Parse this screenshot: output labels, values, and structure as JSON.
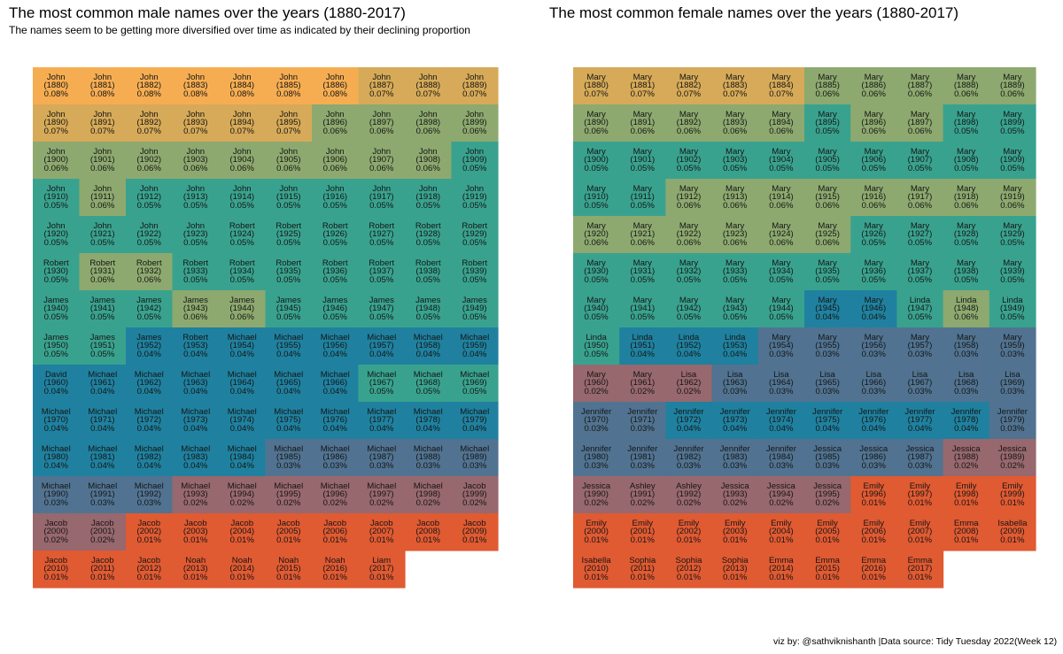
{
  "page": {
    "caption": "viz by: @sathviknishanth |Data source: Tidy Tuesday 2022(Week 12)"
  },
  "charts": {
    "male": {
      "title": "The most common male names over the years (1880-2017)",
      "subtitle": "The names seem to be getting more diversified over time as indicated by their declining proportion"
    },
    "female": {
      "title": "The most common female names over the years (1880-2017)"
    }
  },
  "chart_data": [
    {
      "type": "heatmap",
      "title": "The most common male names over the years (1880-2017)",
      "subtitle": "The names seem to be getting more diversified over time as indicated by their declining proportion",
      "start_year": 1880,
      "end_year": 2017,
      "columns": 10,
      "color_scale": [
        "#e05a32",
        "#7a6e84",
        "#1a7aa3",
        "#3ea98a",
        "#c9a95a",
        "#f6ad52"
      ],
      "names": [
        "John",
        "John",
        "John",
        "John",
        "John",
        "John",
        "John",
        "John",
        "John",
        "John",
        "John",
        "John",
        "John",
        "John",
        "John",
        "John",
        "John",
        "John",
        "John",
        "John",
        "John",
        "John",
        "John",
        "John",
        "John",
        "John",
        "John",
        "John",
        "John",
        "John",
        "John",
        "John",
        "John",
        "John",
        "John",
        "John",
        "John",
        "John",
        "John",
        "John",
        "John",
        "John",
        "John",
        "John",
        "Robert",
        "Robert",
        "Robert",
        "Robert",
        "Robert",
        "Robert",
        "Robert",
        "Robert",
        "Robert",
        "Robert",
        "Robert",
        "Robert",
        "Robert",
        "Robert",
        "Robert",
        "Robert",
        "James",
        "James",
        "James",
        "James",
        "James",
        "James",
        "James",
        "James",
        "James",
        "James",
        "James",
        "James",
        "James",
        "Robert",
        "Michael",
        "Michael",
        "Michael",
        "Michael",
        "Michael",
        "Michael",
        "David",
        "Michael",
        "Michael",
        "Michael",
        "Michael",
        "Michael",
        "Michael",
        "Michael",
        "Michael",
        "Michael",
        "Michael",
        "Michael",
        "Michael",
        "Michael",
        "Michael",
        "Michael",
        "Michael",
        "Michael",
        "Michael",
        "Michael",
        "Michael",
        "Michael",
        "Michael",
        "Michael",
        "Michael",
        "Michael",
        "Michael",
        "Michael",
        "Michael",
        "Michael",
        "Michael",
        "Michael",
        "Michael",
        "Michael",
        "Michael",
        "Michael",
        "Michael",
        "Michael",
        "Michael",
        "Jacob",
        "Jacob",
        "Jacob",
        "Jacob",
        "Jacob",
        "Jacob",
        "Jacob",
        "Jacob",
        "Jacob",
        "Jacob",
        "Jacob",
        "Jacob",
        "Jacob",
        "Jacob",
        "Noah",
        "Noah",
        "Noah",
        "Noah",
        "Liam"
      ],
      "proportions": [
        "0.08%",
        "0.08%",
        "0.08%",
        "0.08%",
        "0.08%",
        "0.08%",
        "0.08%",
        "0.07%",
        "0.07%",
        "0.07%",
        "0.07%",
        "0.07%",
        "0.07%",
        "0.07%",
        "0.07%",
        "0.07%",
        "0.06%",
        "0.06%",
        "0.06%",
        "0.06%",
        "0.06%",
        "0.06%",
        "0.06%",
        "0.06%",
        "0.06%",
        "0.06%",
        "0.06%",
        "0.06%",
        "0.06%",
        "0.05%",
        "0.05%",
        "0.06%",
        "0.05%",
        "0.05%",
        "0.05%",
        "0.05%",
        "0.05%",
        "0.05%",
        "0.05%",
        "0.05%",
        "0.05%",
        "0.05%",
        "0.05%",
        "0.05%",
        "0.05%",
        "0.05%",
        "0.05%",
        "0.05%",
        "0.05%",
        "0.05%",
        "0.05%",
        "0.06%",
        "0.06%",
        "0.05%",
        "0.05%",
        "0.05%",
        "0.05%",
        "0.05%",
        "0.05%",
        "0.05%",
        "0.05%",
        "0.05%",
        "0.05%",
        "0.06%",
        "0.06%",
        "0.05%",
        "0.05%",
        "0.05%",
        "0.05%",
        "0.05%",
        "0.05%",
        "0.05%",
        "0.04%",
        "0.04%",
        "0.04%",
        "0.04%",
        "0.04%",
        "0.04%",
        "0.04%",
        "0.04%",
        "0.04%",
        "0.04%",
        "0.04%",
        "0.04%",
        "0.04%",
        "0.04%",
        "0.04%",
        "0.05%",
        "0.05%",
        "0.05%",
        "0.04%",
        "0.04%",
        "0.04%",
        "0.04%",
        "0.04%",
        "0.04%",
        "0.04%",
        "0.04%",
        "0.04%",
        "0.04%",
        "0.04%",
        "0.04%",
        "0.04%",
        "0.04%",
        "0.04%",
        "0.03%",
        "0.03%",
        "0.03%",
        "0.03%",
        "0.03%",
        "0.03%",
        "0.03%",
        "0.03%",
        "0.02%",
        "0.02%",
        "0.02%",
        "0.02%",
        "0.02%",
        "0.02%",
        "0.02%",
        "0.02%",
        "0.02%",
        "0.01%",
        "0.01%",
        "0.01%",
        "0.01%",
        "0.01%",
        "0.01%",
        "0.01%",
        "0.01%",
        "0.01%",
        "0.01%",
        "0.01%",
        "0.01%",
        "0.01%",
        "0.01%",
        "0.01%",
        "0.01%"
      ]
    },
    {
      "type": "heatmap",
      "title": "The most common female names over the years (1880-2017)",
      "start_year": 1880,
      "end_year": 2017,
      "columns": 10,
      "color_scale": [
        "#e05a32",
        "#7a6e84",
        "#1a7aa3",
        "#3ea98a",
        "#c9a95a",
        "#f6ad52"
      ],
      "names": [
        "Mary",
        "Mary",
        "Mary",
        "Mary",
        "Mary",
        "Mary",
        "Mary",
        "Mary",
        "Mary",
        "Mary",
        "Mary",
        "Mary",
        "Mary",
        "Mary",
        "Mary",
        "Mary",
        "Mary",
        "Mary",
        "Mary",
        "Mary",
        "Mary",
        "Mary",
        "Mary",
        "Mary",
        "Mary",
        "Mary",
        "Mary",
        "Mary",
        "Mary",
        "Mary",
        "Mary",
        "Mary",
        "Mary",
        "Mary",
        "Mary",
        "Mary",
        "Mary",
        "Mary",
        "Mary",
        "Mary",
        "Mary",
        "Mary",
        "Mary",
        "Mary",
        "Mary",
        "Mary",
        "Mary",
        "Mary",
        "Mary",
        "Mary",
        "Mary",
        "Mary",
        "Mary",
        "Mary",
        "Mary",
        "Mary",
        "Mary",
        "Mary",
        "Mary",
        "Mary",
        "Mary",
        "Mary",
        "Mary",
        "Mary",
        "Mary",
        "Mary",
        "Mary",
        "Linda",
        "Linda",
        "Linda",
        "Linda",
        "Linda",
        "Linda",
        "Linda",
        "Mary",
        "Mary",
        "Mary",
        "Mary",
        "Mary",
        "Mary",
        "Mary",
        "Mary",
        "Lisa",
        "Lisa",
        "Lisa",
        "Lisa",
        "Lisa",
        "Lisa",
        "Lisa",
        "Lisa",
        "Jennifer",
        "Jennifer",
        "Jennifer",
        "Jennifer",
        "Jennifer",
        "Jennifer",
        "Jennifer",
        "Jennifer",
        "Jennifer",
        "Jennifer",
        "Jennifer",
        "Jennifer",
        "Jennifer",
        "Jennifer",
        "Jennifer",
        "Jessica",
        "Jessica",
        "Jessica",
        "Jessica",
        "Jessica",
        "Jessica",
        "Ashley",
        "Ashley",
        "Jessica",
        "Jessica",
        "Jessica",
        "Emily",
        "Emily",
        "Emily",
        "Emily",
        "Emily",
        "Emily",
        "Emily",
        "Emily",
        "Emily",
        "Emily",
        "Emily",
        "Emily",
        "Emma",
        "Isabella",
        "Isabella",
        "Sophia",
        "Sophia",
        "Sophia",
        "Emma",
        "Emma",
        "Emma",
        "Emma"
      ],
      "proportions": [
        "0.07%",
        "0.07%",
        "0.07%",
        "0.07%",
        "0.07%",
        "0.06%",
        "0.06%",
        "0.06%",
        "0.06%",
        "0.06%",
        "0.06%",
        "0.06%",
        "0.06%",
        "0.06%",
        "0.06%",
        "0.05%",
        "0.06%",
        "0.06%",
        "0.05%",
        "0.05%",
        "0.05%",
        "0.05%",
        "0.05%",
        "0.05%",
        "0.05%",
        "0.05%",
        "0.05%",
        "0.05%",
        "0.05%",
        "0.05%",
        "0.05%",
        "0.05%",
        "0.06%",
        "0.06%",
        "0.06%",
        "0.06%",
        "0.06%",
        "0.06%",
        "0.06%",
        "0.06%",
        "0.06%",
        "0.06%",
        "0.06%",
        "0.06%",
        "0.06%",
        "0.06%",
        "0.05%",
        "0.05%",
        "0.05%",
        "0.05%",
        "0.05%",
        "0.05%",
        "0.05%",
        "0.05%",
        "0.05%",
        "0.05%",
        "0.05%",
        "0.05%",
        "0.05%",
        "0.05%",
        "0.05%",
        "0.05%",
        "0.05%",
        "0.05%",
        "0.05%",
        "0.04%",
        "0.04%",
        "0.05%",
        "0.06%",
        "0.05%",
        "0.05%",
        "0.04%",
        "0.04%",
        "0.04%",
        "0.03%",
        "0.03%",
        "0.03%",
        "0.03%",
        "0.03%",
        "0.03%",
        "0.02%",
        "0.02%",
        "0.02%",
        "0.03%",
        "0.03%",
        "0.03%",
        "0.03%",
        "0.03%",
        "0.03%",
        "0.03%",
        "0.03%",
        "0.03%",
        "0.04%",
        "0.04%",
        "0.04%",
        "0.04%",
        "0.04%",
        "0.04%",
        "0.04%",
        "0.03%",
        "0.03%",
        "0.03%",
        "0.03%",
        "0.03%",
        "0.03%",
        "0.03%",
        "0.03%",
        "0.03%",
        "0.02%",
        "0.02%",
        "0.02%",
        "0.02%",
        "0.02%",
        "0.02%",
        "0.02%",
        "0.02%",
        "0.01%",
        "0.01%",
        "0.01%",
        "0.01%",
        "0.01%",
        "0.01%",
        "0.01%",
        "0.01%",
        "0.01%",
        "0.01%",
        "0.01%",
        "0.01%",
        "0.01%",
        "0.01%",
        "0.01%",
        "0.01%",
        "0.01%",
        "0.01%",
        "0.01%",
        "0.01%",
        "0.01%",
        "0.01%"
      ]
    }
  ]
}
